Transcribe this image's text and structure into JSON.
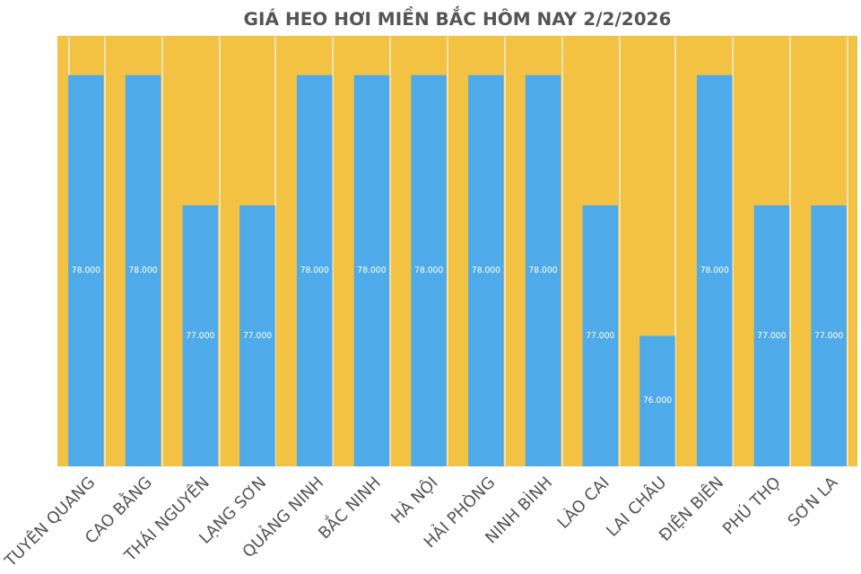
{
  "chart_data": {
    "type": "bar",
    "title": "GIÁ HEO HƠI MIỀN BẮC HÔM NAY 2/2/2026",
    "categories": [
      "TUYÊN QUANG",
      "CAO BẰNG",
      "THÁI NGUYÊN",
      "LẠNG SƠN",
      "QUẢNG NINH",
      "BẮC NINH",
      "HÀ NỘI",
      "HẢI PHÒNG",
      "NINH BÌNH",
      "LÀO CAI",
      "LAI CHÂU",
      "ĐIỆN BIÊN",
      "PHÚ THỌ",
      "SƠN LA"
    ],
    "values": [
      78000,
      78000,
      77000,
      77000,
      78000,
      78000,
      78000,
      78000,
      78000,
      77000,
      76000,
      78000,
      77000,
      77000
    ],
    "value_labels": [
      "78.000",
      "78.000",
      "77.000",
      "77.000",
      "78.000",
      "78.000",
      "78.000",
      "78.000",
      "78.000",
      "77.000",
      "76.000",
      "78.000",
      "77.000",
      "77.000"
    ],
    "color": "#4eaae8",
    "ylim": [
      75000,
      78300
    ],
    "tick_labels": "x",
    "grid": "x"
  }
}
